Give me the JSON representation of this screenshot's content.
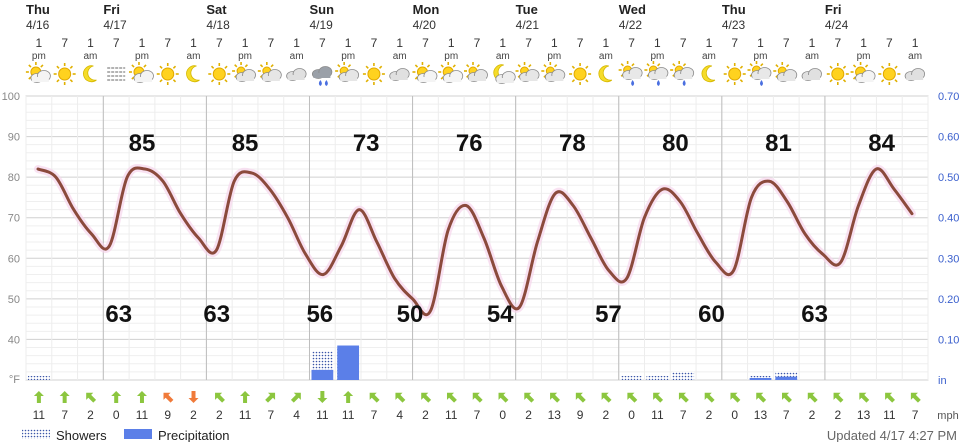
{
  "chart_data": {
    "type": "line",
    "temperature_unit": "°F",
    "precip_unit": "in",
    "wind_unit": "mph",
    "temp_axis": {
      "ylim": [
        30,
        100
      ],
      "ticks": [
        "100",
        "90",
        "80",
        "70",
        "60",
        "50",
        "40"
      ]
    },
    "precip_axis": {
      "ylim": [
        0,
        0.7
      ],
      "ticks": [
        "0.70",
        "0.60",
        "0.50",
        "0.40",
        "0.30",
        "0.20",
        "0.10",
        "in"
      ]
    },
    "days": [
      {
        "day": "Thu",
        "date": "4/16",
        "slot": 0
      },
      {
        "day": "Fri",
        "date": "4/17",
        "slot": 3
      },
      {
        "day": "Sat",
        "date": "4/18",
        "slot": 7
      },
      {
        "day": "Sun",
        "date": "4/19",
        "slot": 11
      },
      {
        "day": "Mon",
        "date": "4/20",
        "slot": 15
      },
      {
        "day": "Tue",
        "date": "4/21",
        "slot": 19
      },
      {
        "day": "Wed",
        "date": "4/22",
        "slot": 23
      },
      {
        "day": "Thu",
        "date": "4/23",
        "slot": 27
      },
      {
        "day": "Fri",
        "date": "4/24",
        "slot": 31
      }
    ],
    "hours": [
      {
        "h": "1",
        "ap": "pm"
      },
      {
        "h": "7",
        "ap": ""
      },
      {
        "h": "1",
        "ap": "am"
      },
      {
        "h": "7",
        "ap": ""
      },
      {
        "h": "1",
        "ap": "pm"
      },
      {
        "h": "7",
        "ap": ""
      },
      {
        "h": "1",
        "ap": "am"
      },
      {
        "h": "7",
        "ap": ""
      },
      {
        "h": "1",
        "ap": "pm"
      },
      {
        "h": "7",
        "ap": ""
      },
      {
        "h": "1",
        "ap": "am"
      },
      {
        "h": "7",
        "ap": ""
      },
      {
        "h": "1",
        "ap": "pm"
      },
      {
        "h": "7",
        "ap": ""
      },
      {
        "h": "1",
        "ap": "am"
      },
      {
        "h": "7",
        "ap": ""
      },
      {
        "h": "1",
        "ap": "pm"
      },
      {
        "h": "7",
        "ap": ""
      },
      {
        "h": "1",
        "ap": "am"
      },
      {
        "h": "7",
        "ap": ""
      },
      {
        "h": "1",
        "ap": "pm"
      },
      {
        "h": "7",
        "ap": ""
      },
      {
        "h": "1",
        "ap": "am"
      },
      {
        "h": "7",
        "ap": ""
      },
      {
        "h": "1",
        "ap": "pm"
      },
      {
        "h": "7",
        "ap": ""
      },
      {
        "h": "1",
        "ap": "am"
      },
      {
        "h": "7",
        "ap": ""
      },
      {
        "h": "1",
        "ap": "pm"
      },
      {
        "h": "7",
        "ap": ""
      },
      {
        "h": "1",
        "ap": "am"
      },
      {
        "h": "7",
        "ap": ""
      },
      {
        "h": "1",
        "ap": "pm"
      },
      {
        "h": "7",
        "ap": ""
      },
      {
        "h": "1",
        "ap": "am"
      }
    ],
    "icons": [
      "partly-sunny",
      "sun",
      "moon",
      "fog",
      "partly-sunny",
      "sun",
      "moon",
      "sun",
      "mostly-cloudy",
      "mostly-cloudy",
      "cloudy",
      "rain",
      "mostly-cloudy",
      "sun",
      "cloudy",
      "partly-sunny",
      "partly-sunny",
      "mostly-cloudy",
      "partly-cloudy-night",
      "mostly-cloudy",
      "mostly-cloudy",
      "sun",
      "moon",
      "showers",
      "showers",
      "showers",
      "moon",
      "sun",
      "showers",
      "mostly-cloudy",
      "cloudy",
      "sun",
      "partly-sunny",
      "sun",
      "cloudy"
    ],
    "temperature": [
      82,
      80,
      72,
      66,
      63,
      80,
      82,
      79,
      71,
      65,
      62,
      79,
      81,
      77,
      70,
      61,
      56,
      63,
      72,
      64,
      55,
      50,
      47,
      67,
      73,
      65,
      53,
      48,
      64,
      76,
      73,
      65,
      57,
      55,
      70,
      77,
      74,
      66,
      59,
      57,
      75,
      79,
      74,
      66,
      61,
      59,
      73,
      82,
      77,
      71
    ],
    "highs": [
      {
        "value": 85,
        "slot": 4
      },
      {
        "value": 85,
        "slot": 8
      },
      {
        "value": 73,
        "slot": 12.7
      },
      {
        "value": 76,
        "slot": 16.7
      },
      {
        "value": 78,
        "slot": 20.7
      },
      {
        "value": 80,
        "slot": 24.7
      },
      {
        "value": 81,
        "slot": 28.7
      },
      {
        "value": 84,
        "slot": 32.7
      }
    ],
    "lows": [
      {
        "value": 63,
        "slot": 3.1
      },
      {
        "value": 63,
        "slot": 6.9
      },
      {
        "value": 56,
        "slot": 10.9
      },
      {
        "value": 50,
        "slot": 14.4
      },
      {
        "value": 54,
        "slot": 17.9
      },
      {
        "value": 57,
        "slot": 22.1
      },
      {
        "value": 60,
        "slot": 26.1
      },
      {
        "value": 63,
        "slot": 30.1
      }
    ],
    "showers": [
      0.01,
      0,
      0,
      0,
      0,
      0,
      0,
      0,
      0,
      0,
      0,
      0.07,
      0.08,
      0,
      0,
      0,
      0,
      0,
      0,
      0,
      0,
      0,
      0,
      0.01,
      0.01,
      0.02,
      0,
      0,
      0.01,
      0.02,
      0,
      0,
      0,
      0,
      0
    ],
    "precipitation": [
      0,
      0,
      0,
      0,
      0,
      0,
      0,
      0,
      0,
      0,
      0,
      0.025,
      0.085,
      0,
      0,
      0,
      0,
      0,
      0,
      0,
      0,
      0,
      0,
      0,
      0,
      0,
      0,
      0,
      0.005,
      0.008,
      0,
      0,
      0,
      0,
      0
    ],
    "wind_speed": [
      "11",
      "7",
      "2",
      "0",
      "11",
      "9",
      "2",
      "2",
      "11",
      "7",
      "4",
      "11",
      "11",
      "7",
      "4",
      "2",
      "11",
      "7",
      "0",
      "2",
      "13",
      "9",
      "2",
      "0",
      "11",
      "7",
      "2",
      "0",
      "13",
      "7",
      "2",
      "2",
      "13",
      "11",
      "7"
    ],
    "wind_dir": [
      0,
      0,
      -45,
      0,
      0,
      -45,
      180,
      -45,
      0,
      45,
      45,
      180,
      0,
      -45,
      -45,
      -45,
      -45,
      -45,
      -45,
      -45,
      -45,
      -45,
      -45,
      -45,
      -45,
      -45,
      -45,
      -45,
      -45,
      -45,
      -45,
      -45,
      -45,
      -45,
      -45
    ],
    "legend": [
      {
        "label": "Showers",
        "pattern": "dots"
      },
      {
        "label": "Precipitation",
        "pattern": "solid"
      }
    ],
    "updated": "Updated 4/17 4:27 PM",
    "colors": {
      "temp_line": "#8b4a3c",
      "precip_bar": "#5b7fe8",
      "showers_bar": "#3b56a8",
      "wind_arrow": "#8cc63f",
      "wind_arrow_alt": "#f07a3a",
      "grid": "#d9d9d9",
      "day_sep": "#bdbdbd",
      "precip_axis_text": "#3a5fcd"
    }
  }
}
